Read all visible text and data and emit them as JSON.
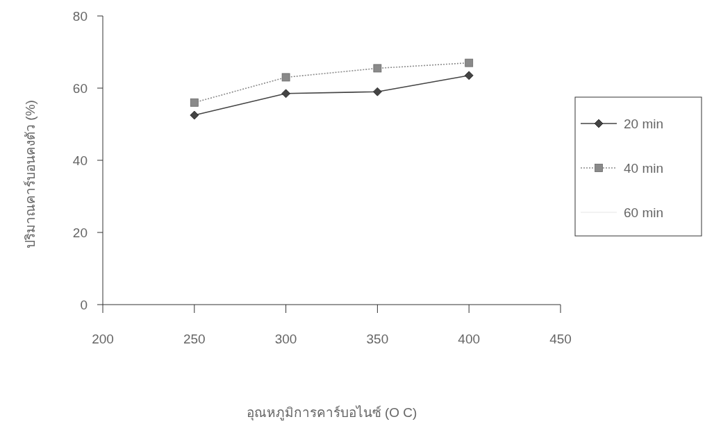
{
  "chart_data": {
    "type": "line",
    "xlabel": "อุณหภูมิการคาร์บอไนซ์ (O C)",
    "ylabel": "ปริมาณคาร์บอนคงตัว (%)",
    "x": [
      250,
      300,
      350,
      400
    ],
    "xlim": [
      200,
      450
    ],
    "xticks": [
      200,
      250,
      300,
      350,
      400,
      450
    ],
    "ylim": [
      0,
      80
    ],
    "yticks": [
      0,
      20,
      40,
      60,
      80
    ],
    "grid": false,
    "legend": "right",
    "series": [
      {
        "name": "20 min",
        "color": "#444444",
        "marker": "diamond",
        "line_style": "solid",
        "values": [
          52.5,
          58.5,
          59,
          63.5
        ]
      },
      {
        "name": "40 min",
        "color": "#8a8a8a",
        "marker": "square",
        "line_style": "dotted",
        "values": [
          56,
          63,
          65.5,
          67
        ]
      },
      {
        "name": "60 min",
        "color": "#eeeeee",
        "marker": "none",
        "line_style": "solid",
        "values": [
          null,
          null,
          null,
          null
        ]
      }
    ]
  }
}
